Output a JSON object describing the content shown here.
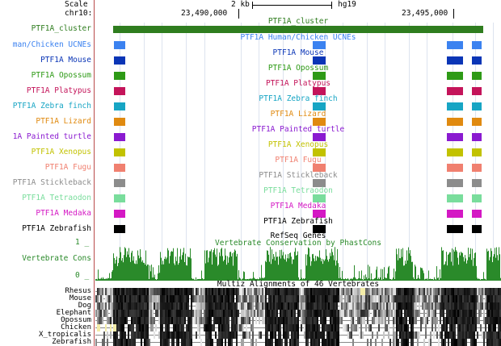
{
  "ruler": {
    "scale_label": "Scale",
    "scale_value": "2 kb",
    "assembly": "hg19",
    "chrom_label": "chr10:",
    "pos1": "23,490,000",
    "pos2": "23,495,000"
  },
  "cluster": {
    "label": "PTF1A_cluster",
    "center": "PTF1A_cluster",
    "color": "#2f7d1f"
  },
  "ucne_tracks": [
    {
      "label": "man/Chicken UCNEs",
      "center": "PTF1A Human/Chicken UCNEs",
      "color": "#3b82f0"
    },
    {
      "label": "PTF1A Mouse",
      "center": "PTF1A Mouse",
      "color": "#0a35b6"
    },
    {
      "label": "PTF1A Opossum",
      "center": "PTF1A Opossum",
      "color": "#2e9a16"
    },
    {
      "label": "PTF1A Platypus",
      "center": "PTF1A Platypus",
      "color": "#c4145a"
    },
    {
      "label": "PTF1A Zebra finch",
      "center": "PTF1A Zebra finch",
      "color": "#17a5c4"
    },
    {
      "label": "PTF1A Lizard",
      "center": "PTF1A Lizard",
      "color": "#e08a10"
    },
    {
      "label": "1A Painted turtle",
      "center": "PTF1A Painted turtle",
      "color": "#8a1ad0"
    },
    {
      "label": "PTF1A Xenopus",
      "center": "PTF1A Xenopus",
      "color": "#c2c200"
    },
    {
      "label": "PTF1A Fugu",
      "center": "PTF1A Fugu",
      "color": "#f08070"
    },
    {
      "label": "PTF1A Stickleback",
      "center": "PTF1A Stickleback",
      "color": "#8c8c8c"
    },
    {
      "label": "PTF1A Tetraodon",
      "center": "PTF1A Tetraodon",
      "color": "#79dd9c"
    },
    {
      "label": "PTF1A Medaka",
      "center": "PTF1A Medaka",
      "color": "#d418c4"
    },
    {
      "label": "PTF1A Zebrafish",
      "center": "PTF1A Zebrafish",
      "color": "#000000"
    }
  ],
  "refseq": {
    "center": "RefSeq Genes"
  },
  "conservation": {
    "center": "Vertebrate Conservation by PhastCons",
    "label": "Vertebrate Cons",
    "axis_max": "1 _",
    "axis_min": "0 _",
    "color": "#2a8a2a"
  },
  "multiz": {
    "center": "Multiz Alignments of 46 Vertebrates",
    "species": [
      "Rhesus",
      "Mouse",
      "Dog",
      "Elephant",
      "Opossum",
      "Chicken",
      "X_tropicalis",
      "Zebrafish"
    ]
  }
}
